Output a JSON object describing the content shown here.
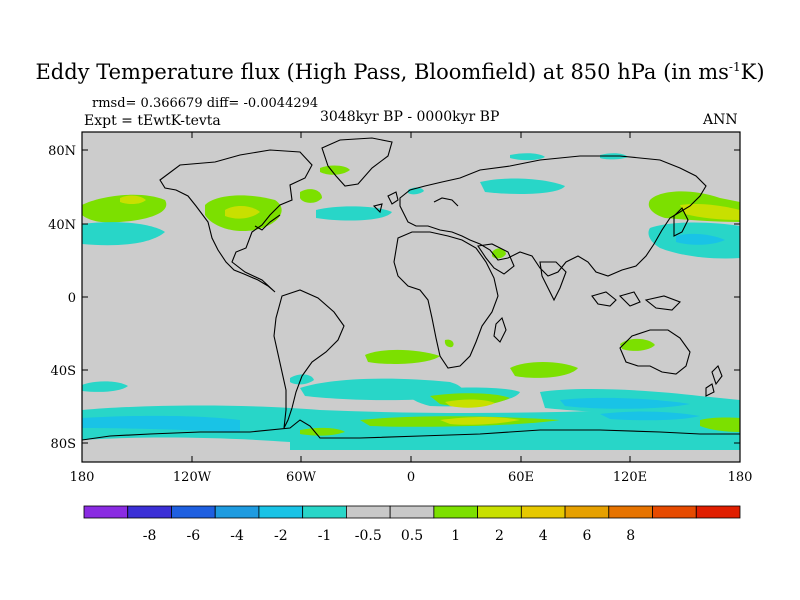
{
  "title": {
    "main": "Eddy Temperature flux (High Pass, Bloomfield) at 850 hPa (in ms",
    "exp": "-1",
    "tail": "K)"
  },
  "stats": "rmsd= 0.366679 diff= -0.0044294",
  "experiment": "Expt = tEwtK-tevta",
  "period": "3048kyr BP - 0000kyr BP",
  "season": "ANN",
  "lat_ticks": [
    "80N",
    "40N",
    "0",
    "40S",
    "80S"
  ],
  "lon_ticks": [
    "180",
    "120W",
    "60W",
    "0",
    "60E",
    "120E",
    "180"
  ],
  "colorbar": {
    "colors": [
      "#8a2be2",
      "#3b2fd6",
      "#1e5fe0",
      "#1e9be0",
      "#19c3e6",
      "#28d6c8",
      "#c8c8c8",
      "#c8c8c8",
      "#7ce000",
      "#c8e000",
      "#e6c800",
      "#e6a000",
      "#e67300",
      "#e64a00",
      "#e01e00"
    ],
    "labels": [
      "-8",
      "-6",
      "-4",
      "-2",
      "-1",
      "-0.5",
      "0.5",
      "1",
      "2",
      "4",
      "6",
      "8"
    ]
  },
  "map_colors": {
    "background": "#cccccc",
    "cyan": "#28d6c8",
    "green": "#7ce000",
    "yellow": "#c8e000",
    "orange": "#e6c800",
    "blue": "#19c3e6",
    "coast": "#000000"
  }
}
